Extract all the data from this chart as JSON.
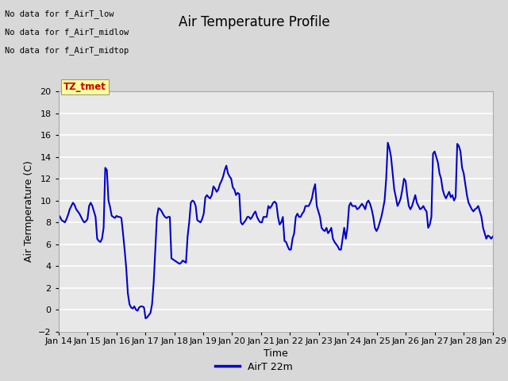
{
  "title": "Air Temperature Profile",
  "xlabel": "Time",
  "ylabel": "Air Termperature (C)",
  "ylim": [
    -2,
    20
  ],
  "yticks": [
    -2,
    0,
    2,
    4,
    6,
    8,
    10,
    12,
    14,
    16,
    18,
    20
  ],
  "x_tick_labels": [
    "Jan 14",
    "Jan 15",
    "Jan 16",
    "Jan 17",
    "Jan 18",
    "Jan 19",
    "Jan 20",
    "Jan 21",
    "Jan 22",
    "Jan 23",
    "Jan 24",
    "Jan 25",
    "Jan 26",
    "Jan 27",
    "Jan 28",
    "Jan 29"
  ],
  "line_color": "#0000cc",
  "line_width": 1.5,
  "bg_color": "#d8d8d8",
  "plot_bg_color": "#e8e8e8",
  "legend_label": "AirT 22m",
  "annotation_texts": [
    "No data for f_AirT_low",
    "No data for f_AirT_midlow",
    "No data for f_AirT_midtop"
  ],
  "annotation_color": "#000000",
  "tz_label_text": "TZ_tmet",
  "tz_label_color": "#cc0000",
  "tz_box_color": "#ffff99",
  "y_values": [
    8.7,
    8.5,
    8.2,
    8.1,
    8.0,
    8.3,
    8.7,
    9.2,
    9.5,
    9.8,
    9.6,
    9.2,
    9.0,
    8.8,
    8.5,
    8.2,
    8.0,
    8.1,
    8.3,
    9.5,
    9.8,
    9.5,
    9.0,
    8.5,
    6.5,
    6.3,
    6.2,
    6.5,
    7.5,
    13.0,
    12.8,
    10.0,
    9.4,
    8.6,
    8.5,
    8.4,
    8.6,
    8.5,
    8.5,
    8.4,
    7.0,
    5.5,
    3.8,
    1.5,
    0.5,
    0.2,
    0.1,
    0.3,
    0.0,
    -0.1,
    0.2,
    0.3,
    0.3,
    0.2,
    -0.8,
    -0.7,
    -0.5,
    -0.3,
    0.5,
    2.5,
    5.5,
    8.5,
    9.3,
    9.2,
    9.0,
    8.7,
    8.5,
    8.4,
    8.5,
    8.5,
    4.7,
    4.6,
    4.5,
    4.4,
    4.3,
    4.2,
    4.3,
    4.5,
    4.4,
    4.3,
    6.7,
    8.0,
    9.8,
    10.0,
    9.9,
    9.5,
    8.2,
    8.1,
    8.0,
    8.3,
    8.8,
    10.3,
    10.5,
    10.3,
    10.2,
    10.5,
    11.3,
    11.1,
    10.8,
    11.0,
    11.5,
    11.8,
    12.2,
    12.8,
    13.2,
    12.5,
    12.2,
    12.0,
    11.2,
    11.0,
    10.5,
    10.7,
    10.6,
    8.0,
    7.8,
    8.0,
    8.2,
    8.5,
    8.5,
    8.3,
    8.5,
    8.8,
    9.0,
    8.5,
    8.2,
    8.0,
    8.0,
    8.5,
    8.5,
    8.5,
    9.5,
    9.3,
    9.5,
    9.8,
    9.9,
    9.7,
    8.5,
    7.8,
    8.0,
    8.5,
    6.3,
    6.2,
    5.8,
    5.5,
    5.5,
    6.5,
    7.0,
    8.5,
    8.8,
    8.5,
    8.5,
    8.8,
    9.0,
    9.5,
    9.5,
    9.5,
    9.8,
    10.2,
    11.0,
    11.5,
    9.5,
    9.0,
    8.5,
    7.5,
    7.3,
    7.2,
    7.5,
    7.0,
    7.2,
    7.5,
    6.5,
    6.2,
    6.0,
    5.8,
    5.5,
    5.5,
    6.5,
    7.5,
    6.5,
    7.5,
    9.5,
    9.8,
    9.5,
    9.5,
    9.5,
    9.2,
    9.3,
    9.5,
    9.7,
    9.5,
    9.2,
    9.8,
    10.0,
    9.7,
    9.2,
    8.5,
    7.5,
    7.2,
    7.5,
    8.0,
    8.5,
    9.2,
    10.0,
    12.0,
    15.3,
    14.8,
    14.0,
    12.5,
    11.0,
    10.3,
    9.5,
    9.8,
    10.2,
    11.0,
    12.0,
    11.8,
    10.5,
    9.5,
    9.2,
    9.5,
    10.0,
    10.5,
    9.8,
    9.5,
    9.2,
    9.3,
    9.5,
    9.2,
    9.0,
    7.5,
    7.8,
    8.5,
    14.3,
    14.5,
    14.0,
    13.5,
    12.5,
    12.0,
    11.0,
    10.5,
    10.2,
    10.5,
    10.8,
    10.3,
    10.5,
    10.0,
    10.3,
    15.2,
    15.0,
    14.5,
    13.0,
    12.5,
    11.5,
    10.5,
    9.8,
    9.5,
    9.2,
    9.0,
    9.2,
    9.3,
    9.5,
    9.0,
    8.5,
    7.5,
    7.0,
    6.5,
    6.8,
    6.7,
    6.5,
    6.7
  ]
}
